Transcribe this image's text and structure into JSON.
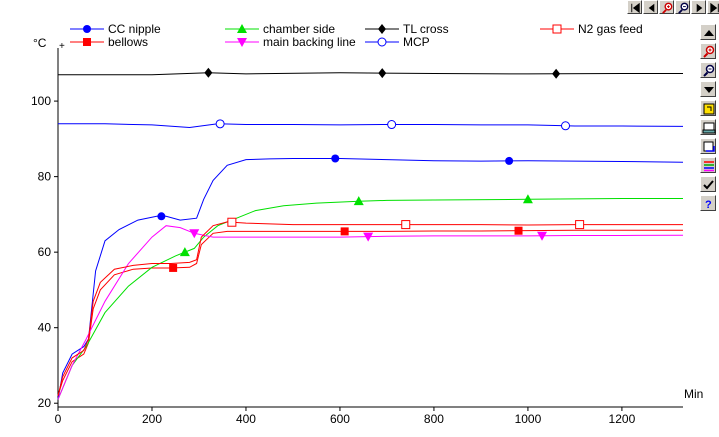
{
  "chart_data": {
    "type": "line",
    "y_unit": "°C",
    "x_unit": "Min",
    "xlim": [
      0,
      1330
    ],
    "ylim": [
      19,
      113
    ],
    "xticks": [
      "0",
      "200",
      "400",
      "600",
      "800",
      "1000",
      "1200"
    ],
    "yticks": [
      "20",
      "40",
      "60",
      "80",
      "100"
    ],
    "grid": false,
    "legend_position": "top",
    "series": [
      {
        "name": "CC nipple",
        "color": "#0000ff",
        "marker": "circle-filled",
        "x": [
          0,
          10,
          30,
          55,
          65,
          80,
          100,
          130,
          170,
          210,
          230,
          260,
          295,
          310,
          330,
          360,
          400,
          450,
          500,
          600,
          700,
          800,
          900,
          1000,
          1100,
          1200,
          1330
        ],
        "y": [
          21,
          28,
          33,
          35,
          37,
          55,
          63,
          66,
          68.5,
          69.5,
          69.5,
          68.5,
          69,
          74,
          79,
          83,
          84.5,
          84.7,
          84.8,
          84.8,
          84.5,
          84.2,
          84.1,
          84.2,
          84.1,
          84,
          83.8
        ],
        "markers_x": [
          220,
          590,
          960
        ]
      },
      {
        "name": "bellows",
        "color": "#ff0000",
        "marker": "square-filled",
        "x": [
          0,
          10,
          30,
          55,
          65,
          75,
          90,
          120,
          160,
          200,
          240,
          280,
          295,
          305,
          330,
          360,
          400,
          450,
          500,
          600,
          700,
          800,
          900,
          1000,
          1100,
          1200,
          1330
        ],
        "y": [
          22,
          26,
          31,
          33,
          36,
          45,
          50,
          54,
          55.5,
          55.8,
          55.8,
          56,
          57,
          62,
          65,
          65.5,
          65.5,
          65.5,
          65.5,
          65.5,
          65.5,
          65.6,
          65.6,
          65.7,
          65.8,
          65.8,
          65.8
        ],
        "markers_x": [
          245,
          610,
          980
        ]
      },
      {
        "name": "chamber side",
        "color": "#00e000",
        "marker": "triangle-up",
        "x": [
          0,
          30,
          60,
          100,
          150,
          200,
          250,
          290,
          310,
          340,
          380,
          420,
          480,
          550,
          640,
          700,
          800,
          1000,
          1200,
          1330
        ],
        "y": [
          21,
          30,
          35,
          44,
          51,
          56,
          59,
          61,
          64,
          67,
          69,
          71,
          72.3,
          73,
          73.5,
          73.7,
          73.8,
          74,
          74.2,
          74.2
        ],
        "markers_x": [
          270,
          640,
          1000
        ]
      },
      {
        "name": "main backing line",
        "color": "#ff00ff",
        "marker": "triangle-down",
        "x": [
          0,
          30,
          60,
          100,
          150,
          200,
          230,
          260,
          290,
          310,
          330,
          370,
          400,
          500,
          600,
          700,
          800,
          900,
          1000,
          1100,
          1200,
          1330
        ],
        "y": [
          21,
          30,
          37,
          47,
          57,
          64,
          67,
          66.5,
          65,
          64.5,
          64,
          64,
          64,
          64,
          64,
          64.2,
          64.3,
          64.3,
          64.3,
          64.4,
          64.4,
          64.5
        ],
        "markers_x": [
          290,
          660,
          1030
        ]
      },
      {
        "name": "TL cross",
        "color": "#000000",
        "marker": "diamond-filled",
        "x": [
          0,
          200,
          320,
          400,
          600,
          800,
          1000,
          1200,
          1330
        ],
        "y": [
          107,
          107,
          107.5,
          107.2,
          107.5,
          107.3,
          107.2,
          107.3,
          107.3
        ],
        "markers_x": [
          320,
          690,
          1060
        ]
      },
      {
        "name": "MCP",
        "color": "#0000ff",
        "marker": "circle-open",
        "x": [
          0,
          100,
          200,
          280,
          340,
          400,
          500,
          600,
          700,
          800,
          900,
          1000,
          1070,
          1100,
          1200,
          1330
        ],
        "y": [
          94,
          94,
          93.7,
          93,
          94,
          93.8,
          93.8,
          93.7,
          93.8,
          93.8,
          93.7,
          93.7,
          93.5,
          93.4,
          93.4,
          93.3
        ],
        "markers_x": [
          345,
          710,
          1080
        ]
      },
      {
        "name": "N2 gas feed",
        "color": "#ff0000",
        "marker": "square-open",
        "x": [
          0,
          10,
          30,
          55,
          65,
          75,
          90,
          120,
          160,
          200,
          240,
          280,
          295,
          305,
          330,
          360,
          400,
          500,
          600,
          700,
          800,
          900,
          1000,
          1100,
          1200,
          1330
        ],
        "y": [
          22,
          27,
          32,
          34,
          37,
          47,
          52,
          55.5,
          56.5,
          57,
          57,
          57.3,
          58,
          64,
          67,
          68,
          67.7,
          67.3,
          67.3,
          67.3,
          67.3,
          67.3,
          67.2,
          67.3,
          67.3,
          67.3
        ],
        "markers_x": [
          370,
          740,
          1110
        ]
      }
    ]
  },
  "toolbar": {
    "top_icons": [
      "first-icon",
      "prev-icon",
      "zoom-in-icon",
      "zoom-out-icon",
      "next-icon",
      "last-icon"
    ],
    "side_icons": [
      "scroll-up-icon",
      "zoom-in-icon",
      "zoom-out-icon",
      "scroll-down-icon",
      "open-file-icon",
      "print-icon",
      "copy-icon",
      "series-list-icon",
      "check-icon",
      "help-icon"
    ]
  }
}
